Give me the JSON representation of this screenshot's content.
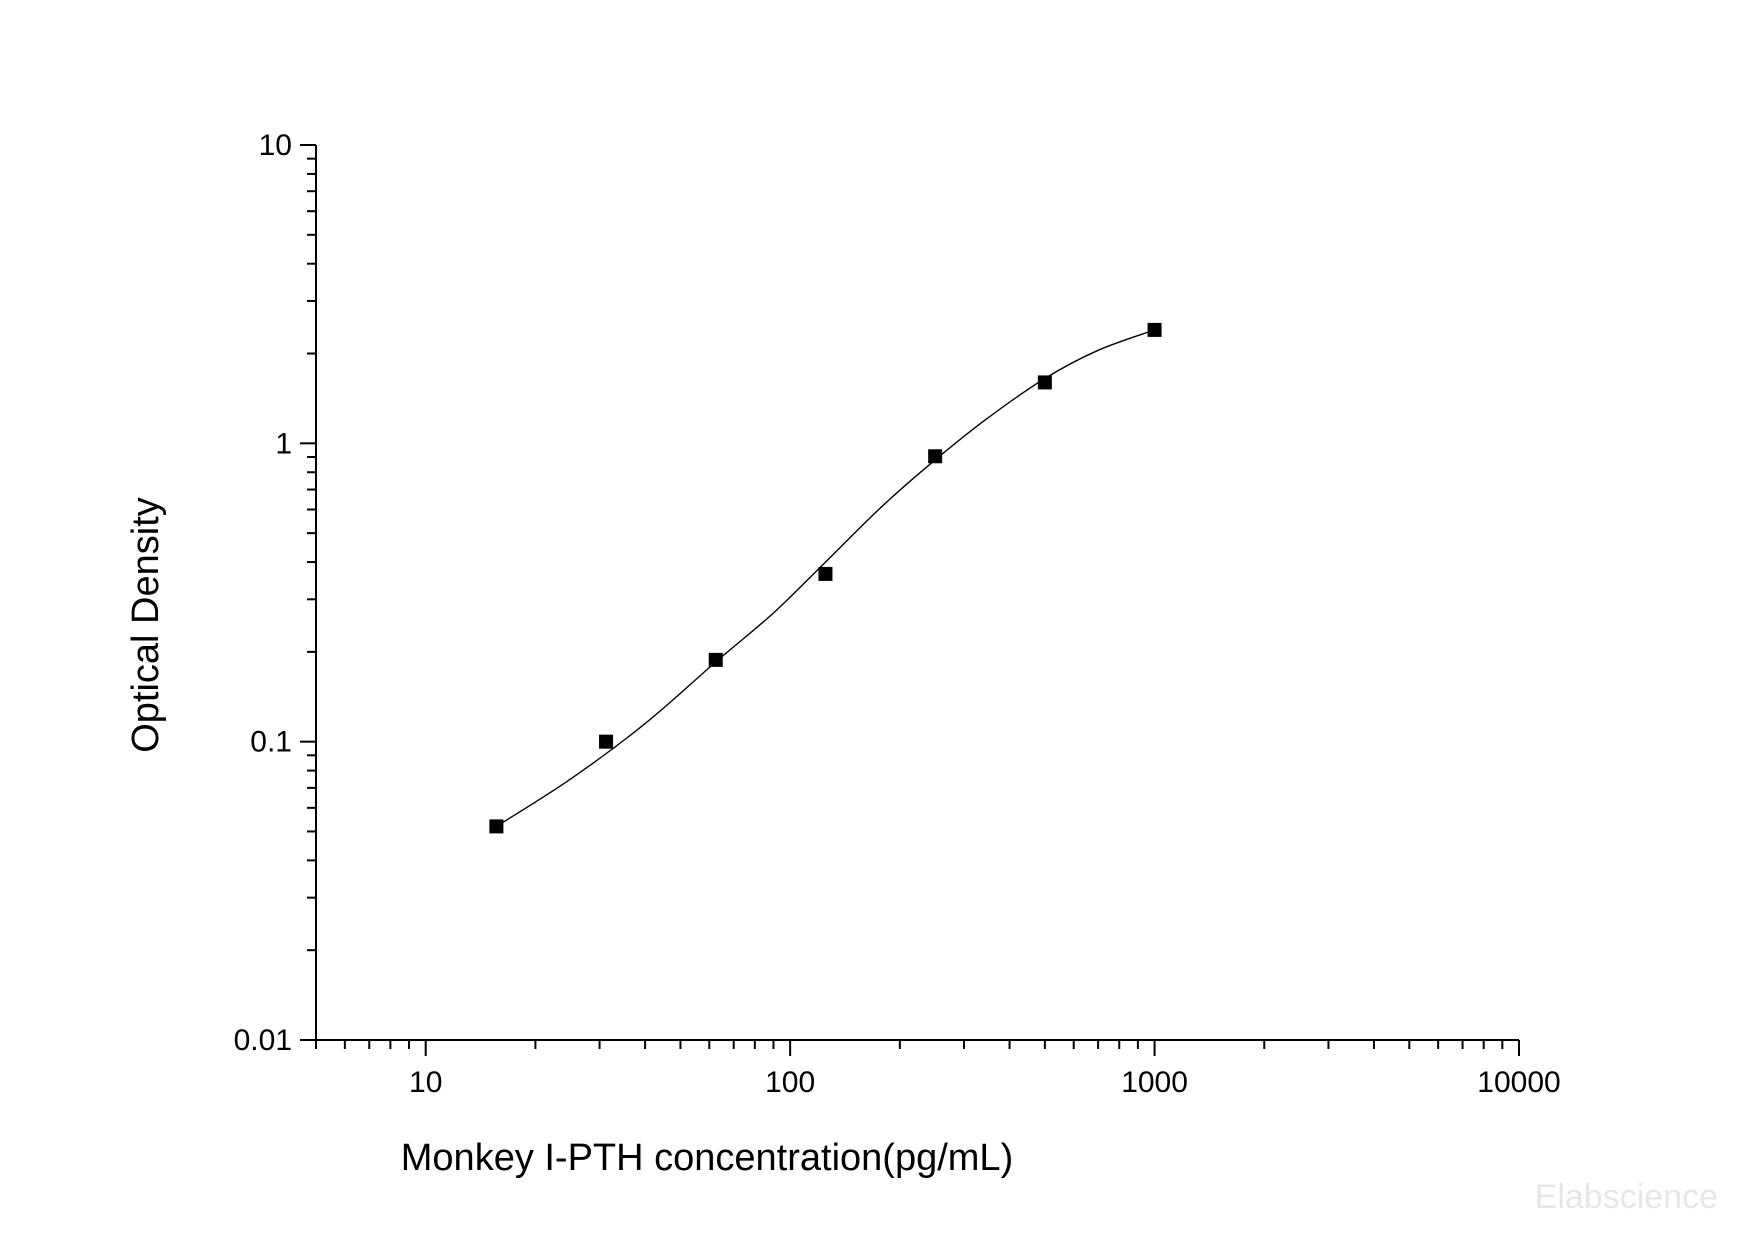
{
  "chart_data": {
    "type": "scatter",
    "title": "",
    "xlabel": "Monkey I-PTH concentration(pg/mL)",
    "ylabel": "Optical Density",
    "xscale": "log",
    "yscale": "log",
    "xlim": [
      5,
      10000
    ],
    "ylim": [
      0.01,
      10
    ],
    "x_ticks": [
      {
        "value": 10,
        "label": "10"
      },
      {
        "value": 100,
        "label": "100"
      },
      {
        "value": 1000,
        "label": "1000"
      },
      {
        "value": 10000,
        "label": "10000"
      }
    ],
    "y_ticks": [
      {
        "value": 0.01,
        "label": "0.01"
      },
      {
        "value": 0.1,
        "label": "0.1"
      },
      {
        "value": 1,
        "label": "1"
      },
      {
        "value": 10,
        "label": "10"
      }
    ],
    "grid": false,
    "series": [
      {
        "marker": "square",
        "color": "#000000",
        "points": [
          {
            "x": 15.63,
            "y": 0.052
          },
          {
            "x": 31.25,
            "y": 0.1
          },
          {
            "x": 62.5,
            "y": 0.188
          },
          {
            "x": 125,
            "y": 0.365
          },
          {
            "x": 250,
            "y": 0.905
          },
          {
            "x": 500,
            "y": 1.6
          },
          {
            "x": 1000,
            "y": 2.4
          }
        ]
      }
    ],
    "fit_curve": {
      "color": "#000000",
      "points": [
        {
          "x": 15.63,
          "y": 0.052
        },
        {
          "x": 25,
          "y": 0.075
        },
        {
          "x": 40,
          "y": 0.115
        },
        {
          "x": 62.5,
          "y": 0.185
        },
        {
          "x": 90,
          "y": 0.27
        },
        {
          "x": 125,
          "y": 0.4
        },
        {
          "x": 180,
          "y": 0.62
        },
        {
          "x": 250,
          "y": 0.88
        },
        {
          "x": 350,
          "y": 1.22
        },
        {
          "x": 500,
          "y": 1.65
        },
        {
          "x": 700,
          "y": 2.05
        },
        {
          "x": 1000,
          "y": 2.4
        }
      ]
    }
  },
  "watermark": {
    "text": "Elabscience"
  }
}
